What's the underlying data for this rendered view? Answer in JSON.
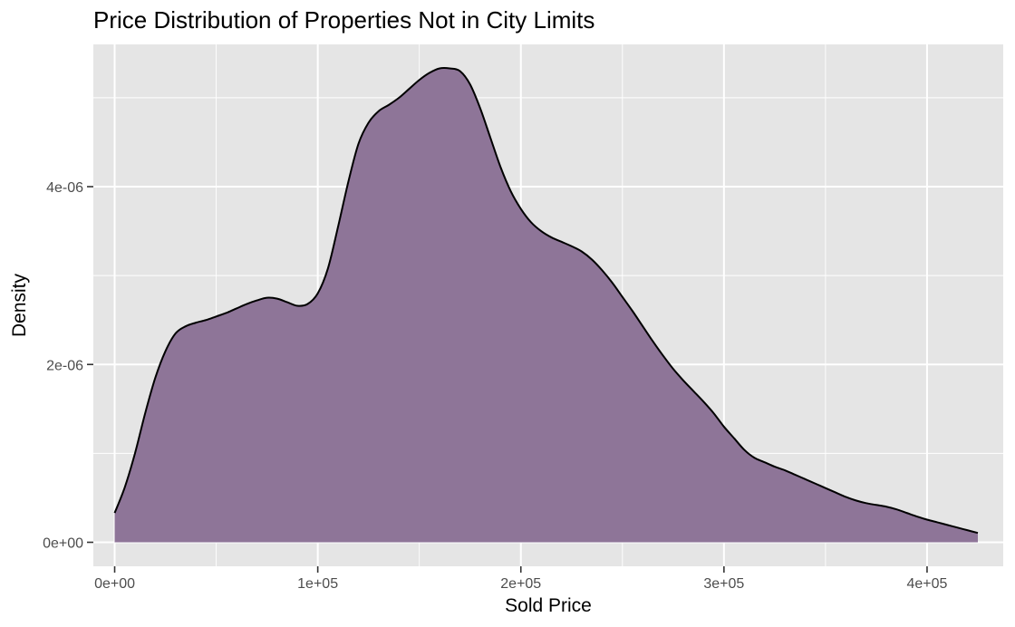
{
  "chart_data": {
    "type": "area",
    "subtype": "density",
    "title": "Price Distribution of Properties Not in City Limits",
    "xlabel": "Sold Price",
    "ylabel": "Density",
    "xlim": [
      -10500,
      437500
    ],
    "ylim": [
      -2.7e-07,
      5.6e-06
    ],
    "x_ticks": [
      0,
      100000,
      200000,
      300000,
      400000
    ],
    "x_tick_labels": [
      "0e+00",
      "1e+05",
      "2e+05",
      "3e+05",
      "4e+05"
    ],
    "y_ticks": [
      0,
      2e-06,
      4e-06
    ],
    "y_tick_labels": [
      "0e+00",
      "2e-06",
      "4e-06"
    ],
    "grid": true,
    "legend": "none",
    "colors": {
      "panel": "#e5e5e5",
      "grid": "#ffffff",
      "fill": "#8c7296",
      "line": "#000000"
    },
    "series": [
      {
        "x": [
          0,
          5000,
          10000,
          15000,
          20000,
          25000,
          30000,
          35000,
          40000,
          45000,
          50000,
          55000,
          60000,
          65000,
          70000,
          75000,
          80000,
          85000,
          90000,
          95000,
          100000,
          105000,
          110000,
          115000,
          120000,
          125000,
          130000,
          135000,
          140000,
          145000,
          150000,
          155000,
          160000,
          165000,
          170000,
          175000,
          180000,
          185000,
          190000,
          195000,
          200000,
          205000,
          210000,
          215000,
          220000,
          225000,
          230000,
          235000,
          240000,
          245000,
          250000,
          255000,
          260000,
          265000,
          270000,
          275000,
          280000,
          285000,
          290000,
          295000,
          300000,
          305000,
          310000,
          315000,
          320000,
          325000,
          330000,
          335000,
          340000,
          345000,
          350000,
          355000,
          360000,
          365000,
          370000,
          375000,
          380000,
          385000,
          390000,
          395000,
          400000,
          405000,
          410000,
          415000,
          420000,
          425000
        ],
        "y": [
          3.3e-07,
          6.2e-07,
          1e-06,
          1.45e-06,
          1.85e-06,
          2.15e-06,
          2.35e-06,
          2.43e-06,
          2.47e-06,
          2.5e-06,
          2.54e-06,
          2.58e-06,
          2.63e-06,
          2.68e-06,
          2.72e-06,
          2.75e-06,
          2.74e-06,
          2.7e-06,
          2.66e-06,
          2.68e-06,
          2.8e-06,
          3.08e-06,
          3.55e-06,
          4.05e-06,
          4.48e-06,
          4.72e-06,
          4.85e-06,
          4.92e-06,
          5e-06,
          5.1e-06,
          5.2e-06,
          5.28e-06,
          5.33e-06,
          5.33e-06,
          5.3e-06,
          5.15e-06,
          4.88e-06,
          4.55e-06,
          4.22e-06,
          3.95e-06,
          3.75e-06,
          3.6e-06,
          3.5e-06,
          3.43e-06,
          3.38e-06,
          3.33e-06,
          3.27e-06,
          3.18e-06,
          3.06e-06,
          2.92e-06,
          2.76e-06,
          2.6e-06,
          2.43e-06,
          2.26e-06,
          2.1e-06,
          1.95e-06,
          1.82e-06,
          1.7e-06,
          1.58e-06,
          1.45e-06,
          1.3e-06,
          1.17e-06,
          1.04e-06,
          9.5e-07,
          9e-07,
          8.5e-07,
          8.1e-07,
          7.6e-07,
          7.1e-07,
          6.6e-07,
          6.1e-07,
          5.6e-07,
          5.1e-07,
          4.7e-07,
          4.4e-07,
          4.2e-07,
          4e-07,
          3.7e-07,
          3.3e-07,
          2.9e-07,
          2.55e-07,
          2.25e-07,
          1.95e-07,
          1.65e-07,
          1.35e-07,
          1.05e-07
        ]
      }
    ]
  }
}
